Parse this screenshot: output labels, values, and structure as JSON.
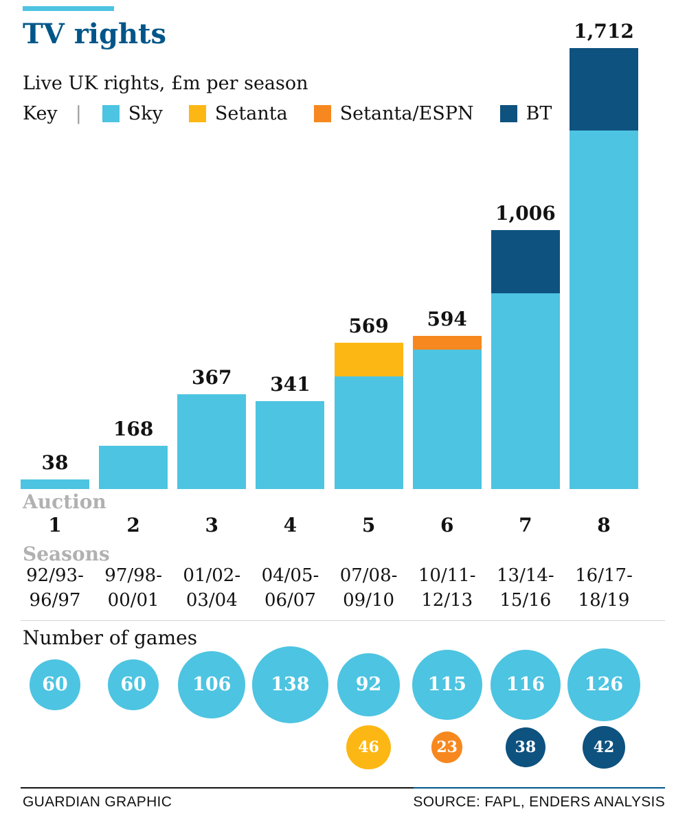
{
  "colors": {
    "sky": "#4dc4e1",
    "setanta": "#fdb714",
    "setanta_espn": "#f6881f",
    "bt": "#0e527f",
    "title": "#005689",
    "muted": "#b1b1b1"
  },
  "header": {
    "title": "TV rights",
    "subtitle": "Live UK rights, £m per season"
  },
  "legend": {
    "label": "Key",
    "separator": "|",
    "items": [
      {
        "label": "Sky",
        "color": "#4dc4e1",
        "icon": "sky-swatch-icon"
      },
      {
        "label": "Setanta",
        "color": "#fdb714",
        "icon": "setanta-swatch-icon"
      },
      {
        "label": "Setanta/ESPN",
        "color": "#f6881f",
        "icon": "setanta-espn-swatch-icon"
      },
      {
        "label": "BT",
        "color": "#0e527f",
        "icon": "bt-swatch-icon"
      }
    ]
  },
  "chart_data": {
    "type": "bar",
    "stacked": true,
    "title": "TV rights",
    "subtitle": "Live UK rights, £m per season",
    "categories": [
      "1",
      "2",
      "3",
      "4",
      "5",
      "6",
      "7",
      "8"
    ],
    "totals": [
      38,
      168,
      367,
      341,
      569,
      594,
      1006,
      1712
    ],
    "total_labels": [
      "38",
      "168",
      "367",
      "341",
      "569",
      "594",
      "1,006",
      "1,712"
    ],
    "series": [
      {
        "name": "Sky",
        "color_key": "sky",
        "values": [
          38,
          168,
          367,
          341,
          438,
          541,
          760,
          1392
        ]
      },
      {
        "name": "Setanta",
        "color_key": "setanta",
        "values": [
          0,
          0,
          0,
          0,
          131,
          0,
          0,
          0
        ]
      },
      {
        "name": "Setanta/ESPN",
        "color_key": "setanta_espn",
        "values": [
          0,
          0,
          0,
          0,
          0,
          53,
          0,
          0
        ]
      },
      {
        "name": "BT",
        "color_key": "bt",
        "values": [
          0,
          0,
          0,
          0,
          0,
          0,
          246,
          320
        ]
      }
    ],
    "ylim": [
      0,
      1712
    ],
    "grid": false,
    "legend_position": "top"
  },
  "auction": {
    "label": "Auction",
    "numbers": [
      "1",
      "2",
      "3",
      "4",
      "5",
      "6",
      "7",
      "8"
    ]
  },
  "seasons": {
    "label": "Seasons",
    "items": [
      {
        "line1": "92/93-",
        "line2": "96/97"
      },
      {
        "line1": "97/98-",
        "line2": "00/01"
      },
      {
        "line1": "01/02-",
        "line2": "03/04"
      },
      {
        "line1": "04/05-",
        "line2": "06/07"
      },
      {
        "line1": "07/08-",
        "line2": "09/10"
      },
      {
        "line1": "10/11-",
        "line2": "12/13"
      },
      {
        "line1": "13/14-",
        "line2": "15/16"
      },
      {
        "line1": "16/17-",
        "line2": "18/19"
      }
    ]
  },
  "games": {
    "label": "Number of games",
    "main": [
      {
        "label": "60",
        "value": 60,
        "color_key": "sky"
      },
      {
        "label": "60",
        "value": 60,
        "color_key": "sky"
      },
      {
        "label": "106",
        "value": 106,
        "color_key": "sky"
      },
      {
        "label": "138",
        "value": 138,
        "color_key": "sky"
      },
      {
        "label": "92",
        "value": 92,
        "color_key": "sky"
      },
      {
        "label": "115",
        "value": 115,
        "color_key": "sky"
      },
      {
        "label": "116",
        "value": 116,
        "color_key": "sky"
      },
      {
        "label": "126",
        "value": 126,
        "color_key": "sky"
      }
    ],
    "extra": [
      {
        "index": 4,
        "label": "46",
        "value": 46,
        "color_key": "setanta"
      },
      {
        "index": 5,
        "label": "23",
        "value": 23,
        "color_key": "setanta_espn"
      },
      {
        "index": 6,
        "label": "38",
        "value": 38,
        "color_key": "bt"
      },
      {
        "index": 7,
        "label": "42",
        "value": 42,
        "color_key": "bt"
      }
    ]
  },
  "footer": {
    "left": "GUARDIAN GRAPHIC",
    "right": "SOURCE: FAPL, ENDERS ANALYSIS"
  }
}
